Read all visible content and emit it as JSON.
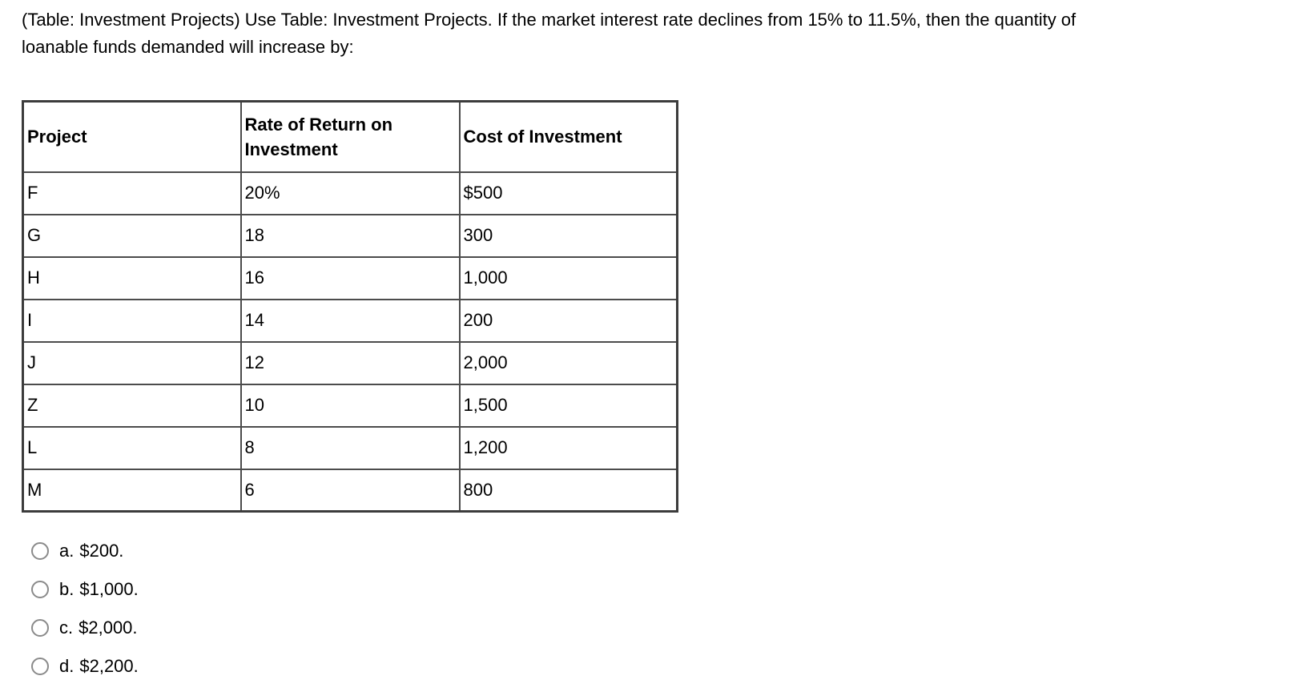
{
  "question": {
    "lines": [
      "(Table: Investment Projects) Use Table: Investment Projects. If the market interest rate declines from 15% to 11.5%, then the quantity of",
      "loanable funds demanded will increase by:"
    ]
  },
  "table": {
    "columns": [
      "Project",
      "Rate of Return on Investment",
      "Cost of Investment"
    ],
    "rows": [
      {
        "project": "F",
        "rate": "20%",
        "cost": "$500"
      },
      {
        "project": "G",
        "rate": "18",
        "cost": "300"
      },
      {
        "project": "H",
        "rate": "16",
        "cost": "1,000"
      },
      {
        "project": "I",
        "rate": "14",
        "cost": "200"
      },
      {
        "project": "J",
        "rate": "12",
        "cost": "2,000"
      },
      {
        "project": "Z",
        "rate": "10",
        "cost": "1,500"
      },
      {
        "project": "L",
        "rate": "8",
        "cost": "1,200"
      },
      {
        "project": "M",
        "rate": "6",
        "cost": "800"
      }
    ]
  },
  "options": [
    {
      "letter": "a.",
      "text": "$200.",
      "selected": false
    },
    {
      "letter": "b.",
      "text": "$1,000.",
      "selected": false
    },
    {
      "letter": "c.",
      "text": "$2,000.",
      "selected": false
    },
    {
      "letter": "d.",
      "text": "$2,200.",
      "selected": false
    }
  ],
  "colors": {
    "background": "#ffffff",
    "text": "#000000",
    "table_border": "#4a4a4a",
    "radio_border": "#8a8a8a"
  }
}
